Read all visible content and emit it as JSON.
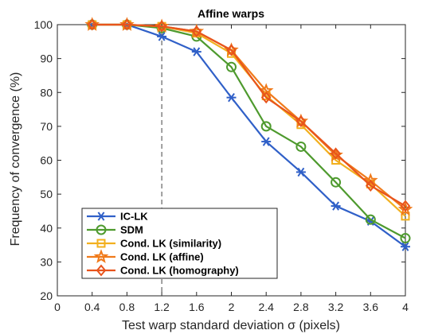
{
  "chart_data": {
    "type": "line",
    "title": "Affine warps",
    "xlabel": "Test warp standard deviation σ (pixels)",
    "ylabel": "Frequency of convergence (%)",
    "xlim": [
      0,
      4
    ],
    "ylim": [
      20,
      100
    ],
    "xticks": [
      "0",
      "0.4",
      "0.8",
      "1.2",
      "1.6",
      "2",
      "2.4",
      "2.8",
      "3.2",
      "3.6",
      "4"
    ],
    "yticks": [
      "20",
      "30",
      "40",
      "50",
      "60",
      "70",
      "80",
      "90",
      "100"
    ],
    "reference_line_x": 1.2,
    "grid": false,
    "legend_position": "bottom-left",
    "x": [
      0.4,
      0.8,
      1.2,
      1.6,
      2.0,
      2.4,
      2.8,
      3.2,
      3.6,
      4.0
    ],
    "series": [
      {
        "name": "IC-LK",
        "color": "#3060C8",
        "marker": "asterisk",
        "values": [
          100,
          100,
          96.5,
          92,
          78.5,
          65.5,
          56.5,
          46.5,
          42,
          34.5
        ]
      },
      {
        "name": "SDM",
        "color": "#4E9A2E",
        "marker": "circle",
        "values": [
          100,
          100,
          99,
          96.5,
          87.5,
          70,
          64,
          53.5,
          42.5,
          37
        ]
      },
      {
        "name": "Cond. LK (similarity)",
        "color": "#F2B01E",
        "marker": "square",
        "values": [
          100,
          100,
          99.5,
          97.5,
          91.5,
          79,
          70.5,
          60,
          53,
          43.5
        ]
      },
      {
        "name": "Cond. LK (affine)",
        "color": "#F07A1A",
        "marker": "star",
        "values": [
          100,
          100,
          99.5,
          98,
          92.5,
          80.5,
          71.5,
          61.5,
          54,
          45.5
        ]
      },
      {
        "name": "Cond. LK (homography)",
        "color": "#E8541C",
        "marker": "diamond",
        "values": [
          100,
          100,
          99.5,
          98,
          92.5,
          78.5,
          71.5,
          62,
          52.5,
          46.5
        ]
      }
    ]
  }
}
